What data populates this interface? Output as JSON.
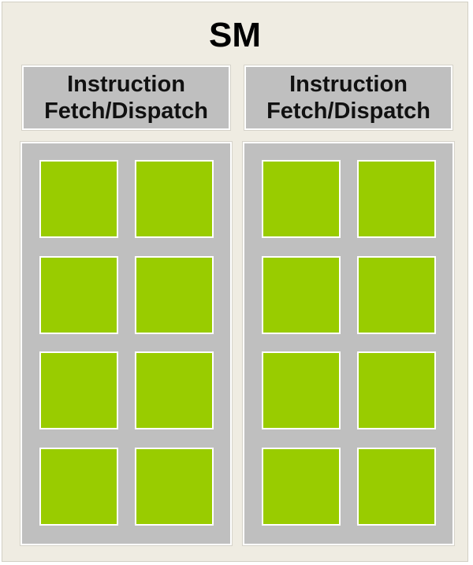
{
  "diagram": {
    "title": "SM",
    "colors": {
      "background": "#efece2",
      "panel": "#bfbfbf",
      "core": "#99cc00",
      "border": "#ffffff"
    },
    "units": [
      {
        "header_line1": "Instruction",
        "header_line2": "Fetch/Dispatch",
        "core_count": 8
      },
      {
        "header_line1": "Instruction",
        "header_line2": "Fetch/Dispatch",
        "core_count": 8
      }
    ]
  }
}
